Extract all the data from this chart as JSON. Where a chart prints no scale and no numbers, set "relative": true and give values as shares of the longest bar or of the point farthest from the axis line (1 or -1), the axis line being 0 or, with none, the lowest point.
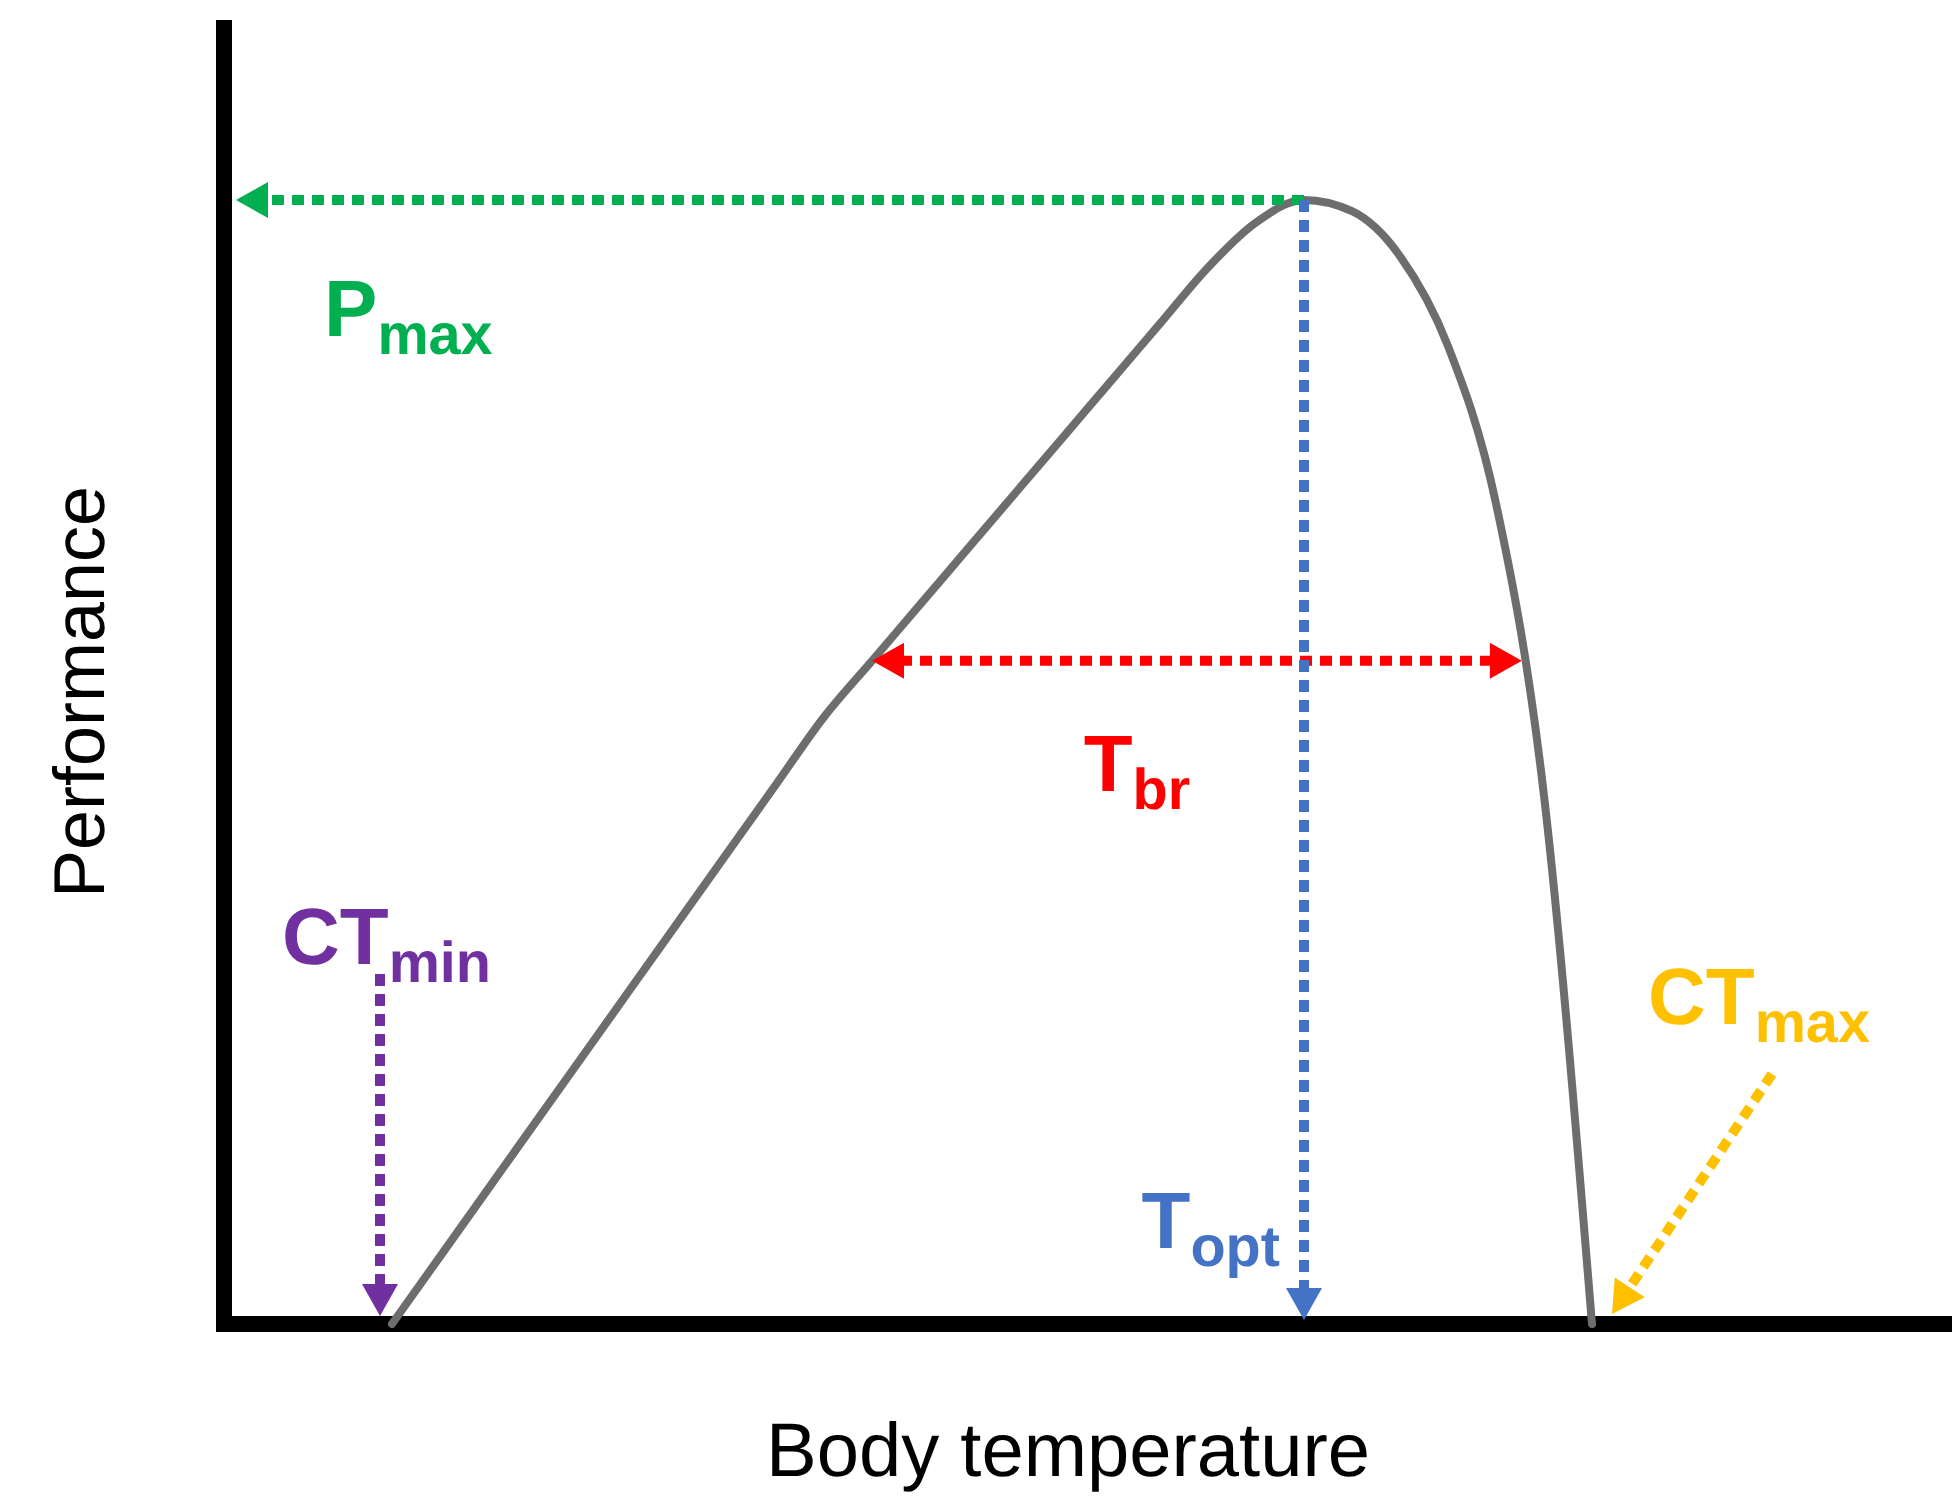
{
  "chart_data": {
    "type": "line",
    "relative": true,
    "xlabel": "Body temperature",
    "ylabel": "Performance",
    "categories": [
      null,
      null,
      null,
      null,
      null,
      null,
      null,
      null,
      null,
      null,
      null,
      null,
      null,
      null,
      null,
      null,
      null,
      null,
      null,
      null,
      null,
      null,
      null,
      null,
      null,
      null,
      null,
      null,
      null,
      null,
      null,
      null,
      null,
      null,
      null,
      null
    ],
    "series": [
      {
        "color": "#6d6d6d",
        "values": [
          null,
          null,
          null,
          0.0,
          0.06,
          0.12,
          0.18,
          0.24,
          0.3,
          0.36,
          0.42,
          0.48,
          0.54,
          0.59,
          0.64,
          0.69,
          0.74,
          0.79,
          0.84,
          0.89,
          0.94,
          0.98,
          1.0,
          0.99,
          0.95,
          0.87,
          0.73,
          0.47,
          0.0,
          null,
          null,
          null,
          null,
          null,
          null,
          null
        ]
      }
    ],
    "annotations": [
      "P$_{max}$",
      "T$_{br}$",
      "CT$_{min}$",
      "T$_{opt}$",
      "CT$_{max}$"
    ]
  }
}
